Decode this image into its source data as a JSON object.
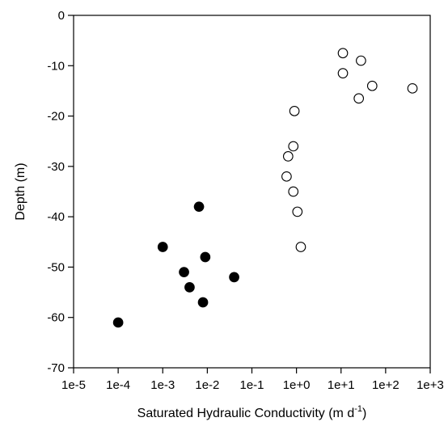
{
  "chart_data": {
    "type": "scatter",
    "title": "",
    "xlabel": "Saturated Hydraulic Conductivity (m d",
    "xlabel_sup": "-1",
    "xlabel_close": ")",
    "ylabel": "Depth (m)",
    "xscale": "log",
    "xlim": [
      1e-05,
      1000
    ],
    "ylim": [
      -70,
      0
    ],
    "grid": false,
    "legend": "none",
    "x_tick_labels": [
      "1e-5",
      "1e-4",
      "1e-3",
      "1e-2",
      "1e-1",
      "1e+0",
      "1e+1",
      "1e+2",
      "1e+3"
    ],
    "x_ticks": [
      1e-05,
      0.0001,
      0.001,
      0.01,
      0.1,
      1,
      10,
      100,
      1000
    ],
    "y_ticks": [
      0,
      -10,
      -20,
      -30,
      -40,
      -50,
      -60,
      -70
    ],
    "y_tick_labels": [
      "0",
      "-10",
      "-20",
      "-30",
      "-40",
      "-50",
      "-60",
      "-70"
    ],
    "series": [
      {
        "marker": "open-circle",
        "color": "#000000",
        "points": [
          {
            "x": 11,
            "y": -7.5
          },
          {
            "x": 28,
            "y": -9
          },
          {
            "x": 11,
            "y": -11.5
          },
          {
            "x": 50,
            "y": -14
          },
          {
            "x": 25,
            "y": -16.5
          },
          {
            "x": 400,
            "y": -14.5
          },
          {
            "x": 0.9,
            "y": -19
          },
          {
            "x": 0.85,
            "y": -26
          },
          {
            "x": 0.65,
            "y": -28
          },
          {
            "x": 0.6,
            "y": -32
          },
          {
            "x": 0.85,
            "y": -35
          },
          {
            "x": 1.05,
            "y": -39
          },
          {
            "x": 1.25,
            "y": -46
          }
        ]
      },
      {
        "marker": "filled-circle",
        "color": "#000000",
        "points": [
          {
            "x": 0.0065,
            "y": -38
          },
          {
            "x": 0.001,
            "y": -46
          },
          {
            "x": 0.009,
            "y": -48
          },
          {
            "x": 0.003,
            "y": -51
          },
          {
            "x": 0.04,
            "y": -52
          },
          {
            "x": 0.004,
            "y": -54
          },
          {
            "x": 0.008,
            "y": -57
          },
          {
            "x": 0.0001,
            "y": -61
          }
        ]
      }
    ]
  }
}
